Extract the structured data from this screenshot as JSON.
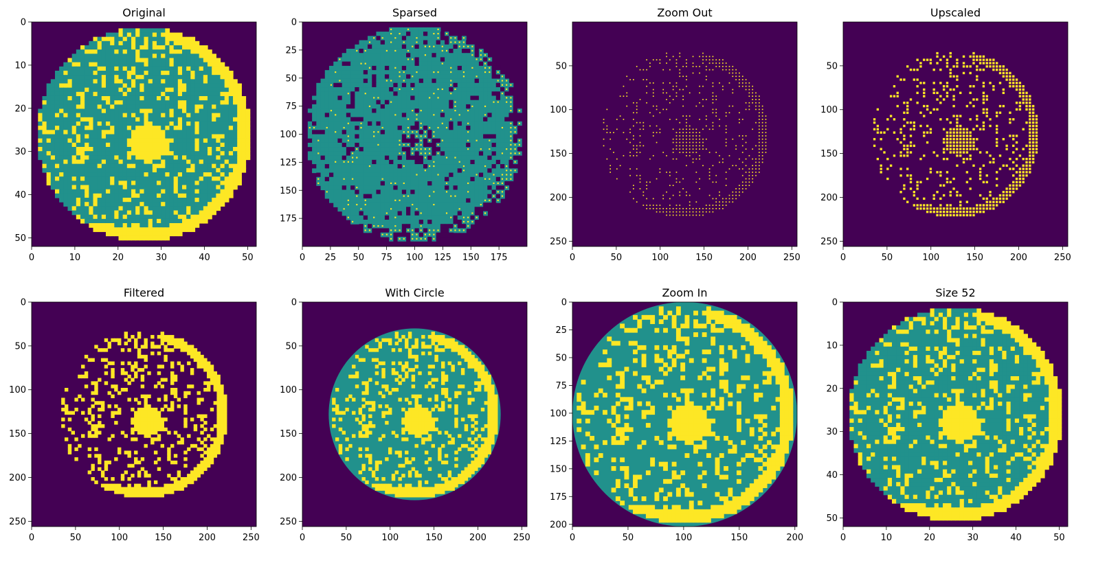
{
  "chart_data": [
    {
      "type": "heatmap",
      "title": "Original",
      "xlim": [
        0,
        52
      ],
      "ylim": [
        52,
        0
      ],
      "xticks": [
        0,
        10,
        20,
        30,
        40,
        50
      ],
      "yticks": [
        0,
        10,
        20,
        30,
        40,
        50
      ],
      "pattern": "base",
      "circle": {
        "cx": 26,
        "cy": 26,
        "r": 25.5
      },
      "hole": {
        "cx": 27,
        "cy": 28,
        "r": 4.5
      },
      "scratch": [
        [
          35,
          51
        ],
        [
          51,
          30
        ]
      ],
      "edge_band": true,
      "sparse": false,
      "filled_circle": false
    },
    {
      "type": "heatmap",
      "title": "Sparsed",
      "xlim": [
        0,
        200
      ],
      "ylim": [
        200,
        0
      ],
      "xticks": [
        0,
        25,
        50,
        75,
        100,
        125,
        150,
        175
      ],
      "yticks": [
        0,
        25,
        50,
        75,
        100,
        125,
        150,
        175
      ],
      "pattern": "sparsed",
      "circle": {
        "cx": 100,
        "cy": 100,
        "r": 99
      },
      "hole": {
        "cx": 100,
        "cy": 105,
        "r": 16
      },
      "scratch": [
        [
          130,
          196
        ],
        [
          196,
          120
        ]
      ],
      "edge_band": true,
      "sparse": false,
      "filled_circle": false
    },
    {
      "type": "heatmap",
      "title": "Zoom Out",
      "xlim": [
        0,
        256
      ],
      "ylim": [
        256,
        0
      ],
      "xticks": [
        0,
        50,
        100,
        150,
        200,
        250
      ],
      "yticks": [
        50,
        100,
        150,
        200,
        250
      ],
      "pattern": "dots",
      "circle": {
        "cx": 128,
        "cy": 128,
        "r": 98
      },
      "hole": {
        "cx": 130,
        "cy": 140,
        "r": 18
      },
      "scratch": [
        [
          160,
          222
        ],
        [
          222,
          158
        ]
      ],
      "edge_band": true,
      "sparse": true,
      "filled_circle": false
    },
    {
      "type": "heatmap",
      "title": "Upscaled",
      "xlim": [
        0,
        256
      ],
      "ylim": [
        256,
        0
      ],
      "xticks": [
        0,
        50,
        100,
        150,
        200,
        250
      ],
      "yticks": [
        50,
        100,
        150,
        200,
        250
      ],
      "pattern": "dots-large",
      "circle": {
        "cx": 128,
        "cy": 128,
        "r": 98
      },
      "hole": {
        "cx": 130,
        "cy": 140,
        "r": 18
      },
      "scratch": [
        [
          160,
          222
        ],
        [
          222,
          158
        ]
      ],
      "edge_band": true,
      "sparse": true,
      "filled_circle": false
    },
    {
      "type": "heatmap",
      "title": "Filtered",
      "xlim": [
        0,
        256
      ],
      "ylim": [
        256,
        0
      ],
      "xticks": [
        0,
        50,
        100,
        150,
        200,
        250
      ],
      "yticks": [
        0,
        50,
        100,
        150,
        200,
        250
      ],
      "pattern": "filtered",
      "circle": {
        "cx": 128,
        "cy": 128,
        "r": 98
      },
      "hole": {
        "cx": 130,
        "cy": 140,
        "r": 18
      },
      "scratch": [
        [
          160,
          222
        ],
        [
          222,
          158
        ]
      ],
      "edge_band": true,
      "sparse": false,
      "filled_circle": false
    },
    {
      "type": "heatmap",
      "title": "With Circle",
      "xlim": [
        0,
        256
      ],
      "ylim": [
        256,
        0
      ],
      "xticks": [
        0,
        50,
        100,
        150,
        200,
        250
      ],
      "yticks": [
        0,
        50,
        100,
        150,
        200,
        250
      ],
      "pattern": "circle",
      "circle": {
        "cx": 128,
        "cy": 128,
        "r": 98
      },
      "hole": {
        "cx": 130,
        "cy": 140,
        "r": 18
      },
      "scratch": [
        [
          160,
          222
        ],
        [
          222,
          158
        ]
      ],
      "edge_band": true,
      "sparse": false,
      "filled_circle": true
    },
    {
      "type": "heatmap",
      "title": "Zoom In",
      "xlim": [
        0,
        202
      ],
      "ylim": [
        202,
        0
      ],
      "xticks": [
        0,
        50,
        100,
        150,
        200
      ],
      "yticks": [
        0,
        25,
        50,
        75,
        100,
        125,
        150,
        175,
        200
      ],
      "pattern": "zoomin",
      "circle": {
        "cx": 101,
        "cy": 101,
        "r": 101
      },
      "hole": {
        "cx": 102,
        "cy": 112,
        "r": 18
      },
      "scratch": [
        [
          125,
          196
        ],
        [
          196,
          118
        ]
      ],
      "edge_band": true,
      "sparse": false,
      "filled_circle": true
    },
    {
      "type": "heatmap",
      "title": "Size 52",
      "xlim": [
        0,
        52
      ],
      "ylim": [
        52,
        0
      ],
      "xticks": [
        0,
        10,
        20,
        30,
        40,
        50
      ],
      "yticks": [
        0,
        10,
        20,
        30,
        40,
        50
      ],
      "pattern": "base",
      "circle": {
        "cx": 26,
        "cy": 26,
        "r": 25.5
      },
      "hole": {
        "cx": 27,
        "cy": 29,
        "r": 4.5
      },
      "scratch": [
        [
          35,
          51
        ],
        [
          51,
          30
        ]
      ],
      "edge_band": true,
      "sparse": false,
      "filled_circle": false
    }
  ],
  "colors": {
    "background": "#440154",
    "wafer": "#21918c",
    "defect": "#fde725",
    "axis": "#000000"
  }
}
